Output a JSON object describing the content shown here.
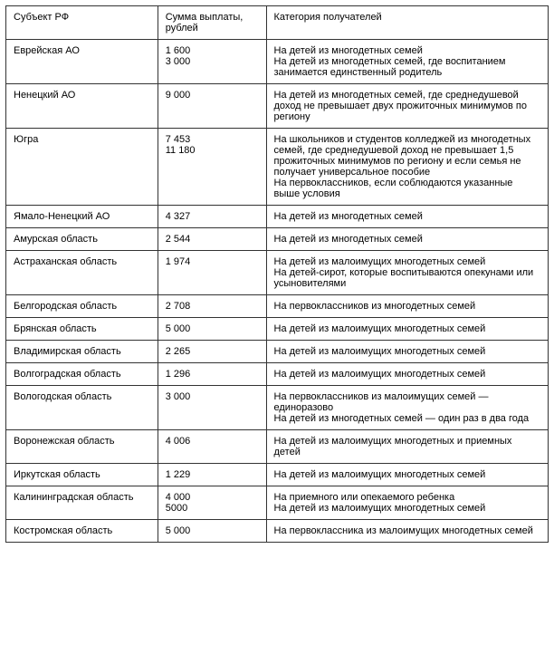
{
  "table": {
    "type": "table",
    "columns": [
      {
        "key": "subject",
        "label": "Субъект РФ",
        "width": "28%",
        "align": "left"
      },
      {
        "key": "amount",
        "label": "Сумма выплаты, рублей",
        "width": "20%",
        "align": "left"
      },
      {
        "key": "category",
        "label": "Категория получателей",
        "width": "52%",
        "align": "left"
      }
    ],
    "rows": [
      {
        "subject": "Еврейская АО",
        "amount": "1 600\n3 000",
        "category": "На детей из многодетных семей\nНа детей из многодетных семей, где воспитанием занимается единственный родитель"
      },
      {
        "subject": "Ненецкий АО",
        "amount": "9 000",
        "category": "На детей из многодетных семей, где среднедушевой доход не превышает двух прожиточных минимумов по региону"
      },
      {
        "subject": "Югра",
        "amount": "7 453\n11 180",
        "category": "На школьников и студентов колледжей из многодетных семей, где среднедушевой доход не превышает 1,5 прожиточных минимумов по региону и если семья не получает универсальное пособие\nНа первоклассников, если соблюдаются указанные выше условия"
      },
      {
        "subject": "Ямало-Ненецкий АО",
        "amount": "4 327",
        "category": "На детей из многодетных семей"
      },
      {
        "subject": "Амурская область",
        "amount": "2 544",
        "category": "На детей из многодетных семей"
      },
      {
        "subject": "Астраханская область",
        "amount": "1 974",
        "category": "На детей из малоимущих многодетных семей\nНа детей-сирот, которые воспитываются опекунами или усыновителями"
      },
      {
        "subject": "Белгородская область",
        "amount": "2 708",
        "category": "На первоклассников из многодетных семей"
      },
      {
        "subject": "Брянская область",
        "amount": "5 000",
        "category": "На детей из малоимущих многодетных семей"
      },
      {
        "subject": "Владимирская область",
        "amount": " 2 265",
        "category": "На детей из малоимущих многодетных семей"
      },
      {
        "subject": "Волгоградская область",
        "amount": "1 296",
        "category": "На детей из малоимущих многодетных семей"
      },
      {
        "subject": "Вологодская область",
        "amount": "3 000",
        "category": "На первоклассников из малоимущих семей — единоразово\nНа детей из многодетных семей — один раз в два года"
      },
      {
        "subject": "Воронежская область",
        "amount": "4 006",
        "category": "На детей из малоимущих многодетных и приемных детей"
      },
      {
        "subject": "Иркутская область",
        "amount": "1 229",
        "category": "На детей из малоимущих многодетных семей"
      },
      {
        "subject": "Калининградская область",
        "amount": "4 000\n5000",
        "category": "На приемного или опекаемого ребенка\nНа детей из малоимущих многодетных семей"
      },
      {
        "subject": "Костромская область",
        "amount": "5 000",
        "category": "На первоклассника из малоимущих многодетных семей"
      }
    ],
    "border_color": "#333333",
    "background_color": "#ffffff",
    "text_color": "#000000",
    "font_size": 11,
    "cell_padding": "6px 8px"
  }
}
